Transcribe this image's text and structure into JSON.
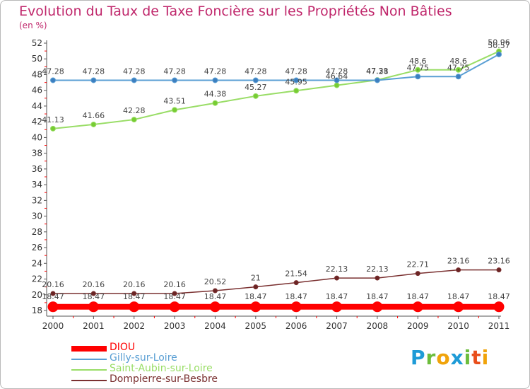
{
  "title": "Evolution du Taux de Taxe Foncière sur les Propriétés Non Bâties",
  "unit_label": "(en %)",
  "colors": {
    "title": "#c0286c",
    "axis": "#555555",
    "grid": "#e0e0e0"
  },
  "logo": {
    "letters": [
      {
        "ch": "P",
        "color": "#1e9bd7"
      },
      {
        "ch": "r",
        "color": "#6cbd3c"
      },
      {
        "ch": "o",
        "color": "#f0a30a"
      },
      {
        "ch": "x",
        "color": "#1e9bd7"
      },
      {
        "ch": "i",
        "color": "#6cbd3c"
      },
      {
        "ch": "t",
        "color": "#e94e1b"
      },
      {
        "ch": "i",
        "color": "#f0a30a"
      }
    ]
  },
  "chart_data": {
    "type": "line",
    "x": [
      "2000",
      "2001",
      "2002",
      "2003",
      "2004",
      "2005",
      "2006",
      "2007",
      "2008",
      "2009",
      "2010",
      "2011"
    ],
    "yticks": [
      "18",
      "20",
      "22",
      "24",
      "26",
      "28",
      "30",
      "32",
      "34",
      "36",
      "38",
      "40",
      "42",
      "44",
      "46",
      "48",
      "50",
      "52"
    ],
    "ylim": [
      18,
      52
    ],
    "grid": false,
    "legend_position": "bottom-left",
    "series": [
      {
        "name": "DIOU",
        "color": "#ff0000",
        "width": 8,
        "marker_r": 7,
        "marker_fill": "#ff0000",
        "values": [
          18.47,
          18.47,
          18.47,
          18.47,
          18.47,
          18.47,
          18.47,
          18.47,
          18.47,
          18.47,
          18.47,
          18.47
        ],
        "labels": [
          "18.47",
          "18.47",
          "18.47",
          "18.47",
          "18.47",
          "18.47",
          "18.47",
          "18.47",
          "18.47",
          "18.47",
          "18.47",
          "18.47"
        ],
        "label_dy": -11
      },
      {
        "name": "Gilly-sur-Loire",
        "color": "#5a9fd4",
        "width": 2,
        "marker_r": 3.5,
        "marker_fill": "#3d7fc0",
        "values": [
          47.28,
          47.28,
          47.28,
          47.28,
          47.28,
          47.28,
          47.28,
          47.28,
          47.28,
          47.75,
          47.75,
          50.57
        ],
        "labels": [
          "47.28",
          "47.28",
          "47.28",
          "47.28",
          "47.28",
          "47.28",
          "47.28",
          "47.28",
          "47.28",
          "47.75",
          "47.75",
          "50.57"
        ],
        "label_dy": -9
      },
      {
        "name": "Saint-Aubin-sur-Loire",
        "color": "#99dd66",
        "width": 2,
        "marker_r": 3.5,
        "marker_fill": "#77cc33",
        "values": [
          41.13,
          41.66,
          42.28,
          43.51,
          44.38,
          45.27,
          45.95,
          46.64,
          47.31,
          48.6,
          48.6,
          50.96
        ],
        "labels": [
          "41.13",
          "41.66",
          "42.28",
          "43.51",
          "44.38",
          "45.27",
          "45.95",
          "46.64",
          "47.31",
          "48.6",
          "48.6",
          "50.96"
        ],
        "label_dy": -9
      },
      {
        "name": "Dompierre-sur-Besbre",
        "color": "#7a3030",
        "width": 1.5,
        "marker_r": 3,
        "marker_fill": "#6a2424",
        "values": [
          20.16,
          20.16,
          20.16,
          20.16,
          20.52,
          21,
          21.54,
          22.13,
          22.13,
          22.71,
          23.16,
          23.16
        ],
        "labels": [
          "20.16",
          "20.16",
          "20.16",
          "20.16",
          "20.52",
          "21",
          "21.54",
          "22.13",
          "22.13",
          "22.71",
          "23.16",
          "23.16"
        ],
        "label_dy": -9
      }
    ]
  }
}
